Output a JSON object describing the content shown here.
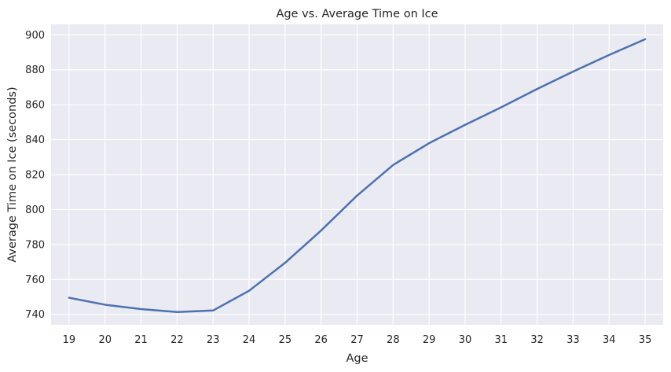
{
  "chart_data": {
    "type": "line",
    "title": "Age vs. Average Time on Ice",
    "xlabel": "Age",
    "ylabel": "Average Time on Ice (seconds)",
    "x": [
      19,
      20,
      21,
      22,
      23,
      24,
      25,
      26,
      27,
      28,
      29,
      30,
      31,
      32,
      33,
      34,
      35
    ],
    "y": [
      749.5,
      745.5,
      743,
      741.3,
      742.2,
      753.5,
      769.5,
      788,
      808,
      825.5,
      838,
      848.5,
      858.5,
      869,
      879,
      888.5,
      897.5
    ],
    "yticks": [
      740,
      760,
      780,
      800,
      820,
      840,
      860,
      880,
      900
    ],
    "xlim": [
      18.5,
      35.5
    ],
    "ylim": [
      734,
      906
    ],
    "grid": true,
    "colors": {
      "line": "#4c72b0",
      "plot_bg": "#eaeaf2",
      "grid": "#ffffff"
    }
  }
}
